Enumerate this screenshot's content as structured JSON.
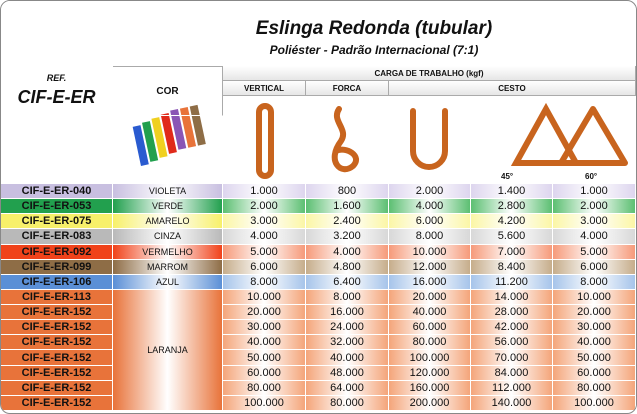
{
  "header": {
    "title": "Eslinga Redonda (tubular)",
    "subtitle": "Poliéster - Padrão Internacional (7:1)",
    "ref_label": "REF.",
    "ref_code": "CIF-E-ER",
    "cor": "COR",
    "carga": "CARGA DE TRABALHO (kgf)",
    "columns": [
      "VERTICAL",
      "FORCA",
      "CESTO"
    ],
    "angles": [
      "45°",
      "60°"
    ]
  },
  "rows": [
    {
      "ref": "CIF-E-ER-040",
      "cor": "VIOLETA",
      "values": [
        "1.000",
        "800",
        "2.000",
        "1.400",
        "1.000"
      ],
      "color": "#c8bfe0",
      "tint": "#ddd5ee"
    },
    {
      "ref": "CIF-E-ER-053",
      "cor": "VERDE",
      "values": [
        "2.000",
        "1.600",
        "4.000",
        "2.800",
        "2.000"
      ],
      "color": "#22a04e",
      "tint": "#5cbf72"
    },
    {
      "ref": "CIF-E-ER-075",
      "cor": "AMARELO",
      "values": [
        "3.000",
        "2.400",
        "6.000",
        "4.200",
        "3.000"
      ],
      "color": "#f7f06a",
      "tint": "#fbf6a6"
    },
    {
      "ref": "CIF-E-ER-083",
      "cor": "CINZA",
      "values": [
        "4.000",
        "3.200",
        "8.000",
        "5.600",
        "4.000"
      ],
      "color": "#b9b9b9",
      "tint": "#d8d8d8"
    },
    {
      "ref": "CIF-E-ER-092",
      "cor": "VERMELHO",
      "values": [
        "5.000",
        "4.000",
        "10.000",
        "7.000",
        "5.000"
      ],
      "color": "#f0421a",
      "tint": "#f69a7a"
    },
    {
      "ref": "CIF-E-ER-099",
      "cor": "MARROM",
      "values": [
        "6.000",
        "4.800",
        "12.000",
        "8.400",
        "6.000"
      ],
      "color": "#8e6d46",
      "tint": "#c6ad8b"
    },
    {
      "ref": "CIF-E-ER-106",
      "cor": "AZUL",
      "values": [
        "8.000",
        "6.400",
        "16.000",
        "11.200",
        "8.000"
      ],
      "color": "#5a8fd6",
      "tint": "#a6c4ea"
    }
  ],
  "laranja": {
    "cor": "LARANJA",
    "color": "#e8733a",
    "tint": "#f4a57a",
    "rows": [
      {
        "ref": "CIF-E-ER-113",
        "values": [
          "10.000",
          "8.000",
          "20.000",
          "14.000",
          "10.000"
        ]
      },
      {
        "ref": "CIF-E-ER-152",
        "values": [
          "20.000",
          "16.000",
          "40.000",
          "28.000",
          "20.000"
        ]
      },
      {
        "ref": "CIF-E-ER-152",
        "values": [
          "30.000",
          "24.000",
          "60.000",
          "42.000",
          "30.000"
        ]
      },
      {
        "ref": "CIF-E-ER-152",
        "values": [
          "40.000",
          "32.000",
          "80.000",
          "56.000",
          "40.000"
        ]
      },
      {
        "ref": "CIF-E-ER-152",
        "values": [
          "50.000",
          "40.000",
          "100.000",
          "70.000",
          "50.000"
        ]
      },
      {
        "ref": "CIF-E-ER-152",
        "values": [
          "60.000",
          "48.000",
          "120.000",
          "84.000",
          "60.000"
        ]
      },
      {
        "ref": "CIF-E-ER-152",
        "values": [
          "80.000",
          "64.000",
          "160.000",
          "112.000",
          "80.000"
        ]
      },
      {
        "ref": "CIF-E-ER-152",
        "values": [
          "100.000",
          "80.000",
          "200.000",
          "140.000",
          "100.000"
        ]
      }
    ]
  }
}
